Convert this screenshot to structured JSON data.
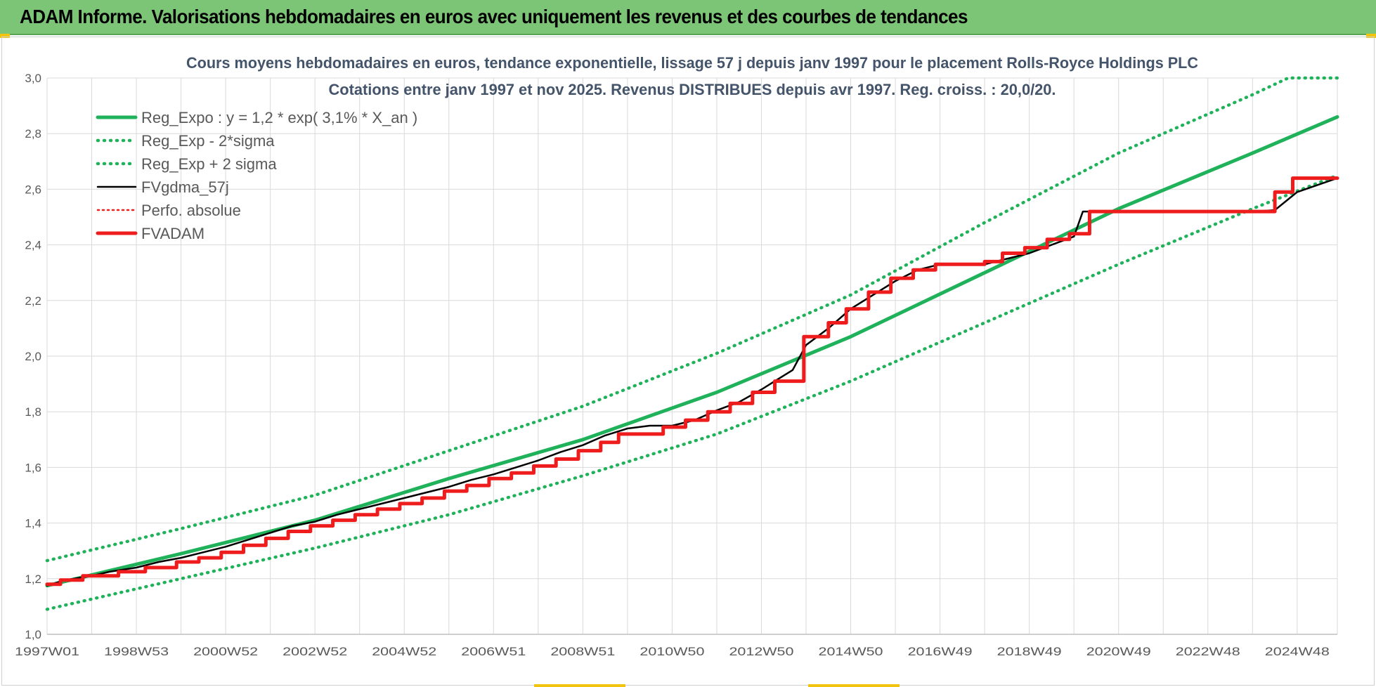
{
  "header": {
    "title": "ADAM Informe. Valorisations hebdomadaires en euros avec uniquement les revenus et des courbes de tendances"
  },
  "colors": {
    "banner": "#7cc576",
    "reg_expo": "#1fb25a",
    "fvgdma": "#000000",
    "fvadam": "#ee1c1c",
    "grid": "#d9d9d9"
  },
  "chart_data": {
    "type": "line",
    "title": "Cours moyens hebdomadaires en euros, tendance exponentielle, lissage 57 j depuis janv 1997 pour le placement Rolls-Royce Holdings PLC",
    "subtitle": "Cotations entre janv 1997 et nov 2025. Revenus DISTRIBUES depuis avr 1997. Reg. croiss. : 20,0/20.",
    "xlabel": "",
    "ylabel": "",
    "x_range": [
      1997.0,
      2025.9
    ],
    "ylim": [
      1.0,
      3.0
    ],
    "yticks": [
      "1,0",
      "1,2",
      "1,4",
      "1,6",
      "1,8",
      "2,0",
      "2,2",
      "2,4",
      "2,6",
      "2,8",
      "3,0"
    ],
    "xticks": [
      {
        "x": 1997.0,
        "label": "1997W01"
      },
      {
        "x": 1999.0,
        "label": "1998W53"
      },
      {
        "x": 2001.0,
        "label": "2000W52"
      },
      {
        "x": 2003.0,
        "label": "2002W52"
      },
      {
        "x": 2005.0,
        "label": "2004W52"
      },
      {
        "x": 2007.0,
        "label": "2006W51"
      },
      {
        "x": 2009.0,
        "label": "2008W51"
      },
      {
        "x": 2011.0,
        "label": "2010W50"
      },
      {
        "x": 2013.0,
        "label": "2012W50"
      },
      {
        "x": 2015.0,
        "label": "2014W50"
      },
      {
        "x": 2017.0,
        "label": "2016W49"
      },
      {
        "x": 2019.0,
        "label": "2018W49"
      },
      {
        "x": 2021.0,
        "label": "2020W49"
      },
      {
        "x": 2023.0,
        "label": "2022W48"
      },
      {
        "x": 2025.0,
        "label": "2024W48"
      }
    ],
    "grid": true,
    "legend_position": "top-left",
    "legend": [
      {
        "label": "Reg_Expo : y = 1,2 * exp( 3,1% *  X_an )",
        "style": "solid-green"
      },
      {
        "label": "Reg_Exp - 2*sigma",
        "style": "dotted-green"
      },
      {
        "label": "Reg_Exp + 2 sigma",
        "style": "dotted-green"
      },
      {
        "label": "FVgdma_57j",
        "style": "solid-black"
      },
      {
        "label": "Perfo. absolue",
        "style": "dotted-red"
      },
      {
        "label": "FVADAM",
        "style": "solid-red"
      }
    ],
    "series": [
      {
        "name": "Reg_Expo : y = 1,2 * exp( 3,1% *  X_an )",
        "x": [
          1997.0,
          2000.0,
          2003.0,
          2006.0,
          2009.0,
          2012.0,
          2015.0,
          2018.0,
          2021.0,
          2024.0,
          2025.9
        ],
        "values": [
          1.175,
          1.29,
          1.41,
          1.56,
          1.7,
          1.87,
          2.07,
          2.3,
          2.53,
          2.73,
          2.86
        ]
      },
      {
        "name": "Reg_Exp - 2*sigma",
        "x": [
          1997.0,
          2000.0,
          2003.0,
          2006.0,
          2009.0,
          2012.0,
          2015.0,
          2018.0,
          2021.0,
          2024.0,
          2025.9
        ],
        "values": [
          1.09,
          1.2,
          1.31,
          1.43,
          1.57,
          1.72,
          1.91,
          2.12,
          2.33,
          2.53,
          2.65
        ]
      },
      {
        "name": "Reg_Exp + 2 sigma",
        "x": [
          1997.0,
          2000.0,
          2003.0,
          2006.0,
          2009.0,
          2012.0,
          2015.0,
          2018.0,
          2021.0,
          2024.0,
          2024.8,
          2025.9
        ],
        "values": [
          1.265,
          1.38,
          1.5,
          1.66,
          1.82,
          2.01,
          2.22,
          2.48,
          2.73,
          2.94,
          3.0,
          3.0
        ]
      },
      {
        "name": "FVgdma_57j",
        "x": [
          1997.0,
          1997.4,
          1998.0,
          1998.4,
          1999.0,
          1999.5,
          2000.0,
          2000.5,
          2001.0,
          2001.5,
          2002.0,
          2002.5,
          2003.0,
          2003.5,
          2004.0,
          2004.5,
          2005.0,
          2005.5,
          2006.0,
          2006.5,
          2007.0,
          2007.5,
          2008.0,
          2008.5,
          2009.0,
          2009.5,
          2010.0,
          2010.5,
          2011.0,
          2011.5,
          2012.0,
          2012.5,
          2013.0,
          2013.3,
          2013.7,
          2014.0,
          2014.5,
          2015.0,
          2015.5,
          2016.0,
          2016.5,
          2017.0,
          2018.0,
          2018.5,
          2019.0,
          2019.5,
          2020.0,
          2020.2,
          2021.0,
          2022.0,
          2023.0,
          2024.0,
          2024.5,
          2025.0,
          2025.9
        ],
        "values": [
          1.175,
          1.195,
          1.21,
          1.225,
          1.24,
          1.26,
          1.275,
          1.295,
          1.315,
          1.34,
          1.365,
          1.39,
          1.405,
          1.43,
          1.45,
          1.47,
          1.49,
          1.51,
          1.53,
          1.555,
          1.575,
          1.6,
          1.625,
          1.655,
          1.68,
          1.715,
          1.74,
          1.75,
          1.75,
          1.77,
          1.805,
          1.835,
          1.88,
          1.91,
          1.95,
          2.04,
          2.1,
          2.17,
          2.22,
          2.27,
          2.31,
          2.33,
          2.33,
          2.35,
          2.37,
          2.4,
          2.43,
          2.52,
          2.52,
          2.52,
          2.52,
          2.52,
          2.525,
          2.59,
          2.64
        ]
      },
      {
        "name": "Perfo. absolue",
        "x": [],
        "values": []
      },
      {
        "name": "FVADAM",
        "x": [
          1997.0,
          1997.3,
          1997.8,
          1998.6,
          1999.2,
          1999.9,
          2000.4,
          2000.9,
          2001.4,
          2001.9,
          2002.4,
          2002.9,
          2003.4,
          2003.9,
          2004.4,
          2004.9,
          2005.4,
          2005.9,
          2006.4,
          2006.9,
          2007.4,
          2007.9,
          2008.4,
          2008.9,
          2009.4,
          2009.8,
          2010.8,
          2011.3,
          2011.8,
          2012.3,
          2012.8,
          2013.3,
          2013.95,
          2014.5,
          2014.9,
          2015.4,
          2015.9,
          2016.4,
          2016.9,
          2018.0,
          2018.4,
          2018.9,
          2019.4,
          2019.9,
          2020.35,
          2024.5,
          2024.9,
          2025.9
        ],
        "values": [
          1.18,
          1.195,
          1.21,
          1.225,
          1.24,
          1.26,
          1.275,
          1.295,
          1.32,
          1.345,
          1.37,
          1.39,
          1.41,
          1.43,
          1.45,
          1.47,
          1.49,
          1.515,
          1.535,
          1.56,
          1.58,
          1.605,
          1.63,
          1.66,
          1.69,
          1.72,
          1.745,
          1.77,
          1.8,
          1.83,
          1.87,
          1.91,
          2.07,
          2.12,
          2.17,
          2.23,
          2.28,
          2.31,
          2.33,
          2.34,
          2.37,
          2.39,
          2.42,
          2.44,
          2.52,
          2.59,
          2.64,
          2.64
        ]
      }
    ]
  }
}
